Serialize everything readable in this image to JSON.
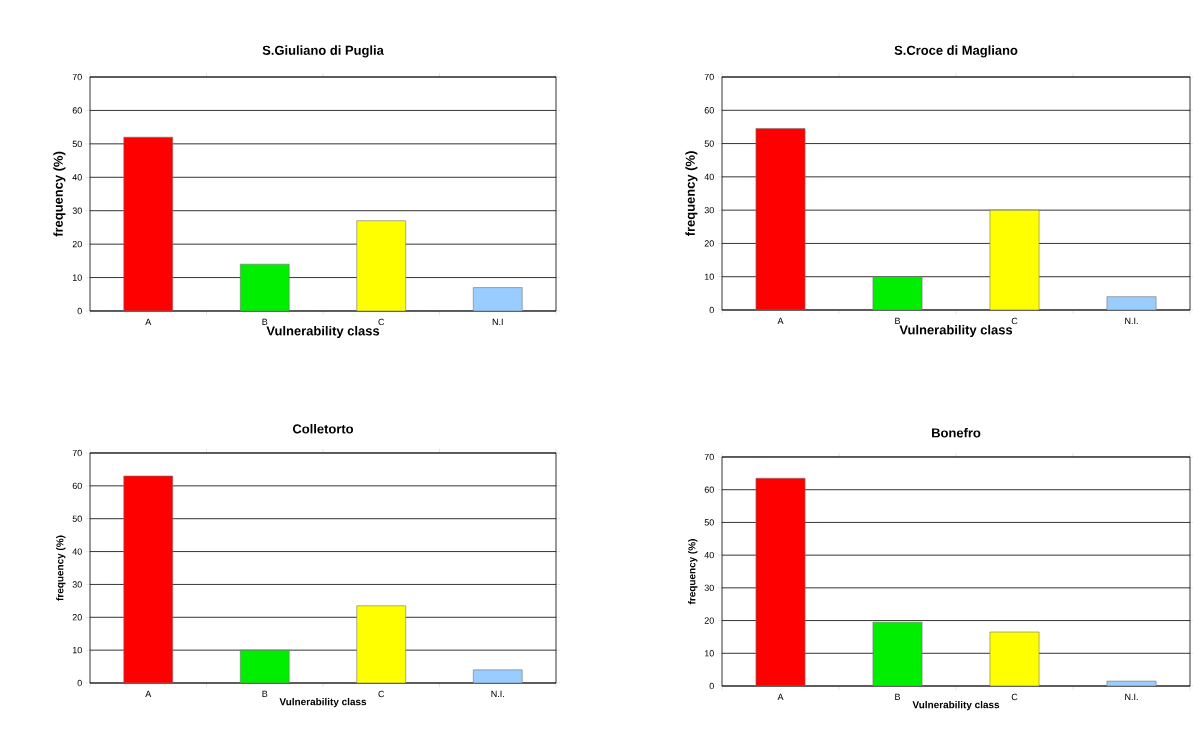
{
  "chart_data": [
    {
      "type": "bar",
      "title": "S.Giuliano di Puglia",
      "xlabel": "Vulnerability class",
      "ylabel": "frequency (%)",
      "categories": [
        "A",
        "B",
        "C",
        "N.I"
      ],
      "values": [
        52,
        14,
        27,
        7
      ],
      "colors": [
        "#ff0000",
        "#00ee00",
        "#ffff00",
        "#99ccff"
      ],
      "ylim": [
        0,
        70
      ],
      "yticks": [
        0,
        10,
        20,
        30,
        40,
        50,
        60,
        70
      ],
      "grid": "y"
    },
    {
      "type": "bar",
      "title": "S.Croce di Magliano",
      "xlabel": "Vulnerability class",
      "ylabel": "frequency (%)",
      "categories": [
        "A",
        "B",
        "C",
        "N.I."
      ],
      "values": [
        54.5,
        10,
        30,
        4
      ],
      "colors": [
        "#ff0000",
        "#00ee00",
        "#ffff00",
        "#99ccff"
      ],
      "ylim": [
        0,
        70
      ],
      "yticks": [
        0,
        10,
        20,
        30,
        40,
        50,
        60,
        70
      ],
      "grid": "y"
    },
    {
      "type": "bar",
      "title": "Colletorto",
      "xlabel": "Vulnerability class",
      "ylabel": "frequency (%)",
      "categories": [
        "A",
        "B",
        "C",
        "N.I."
      ],
      "values": [
        63,
        10,
        23.5,
        4
      ],
      "colors": [
        "#ff0000",
        "#00ee00",
        "#ffff00",
        "#99ccff"
      ],
      "ylim": [
        0,
        70
      ],
      "yticks": [
        0,
        10,
        20,
        30,
        40,
        50,
        60,
        70
      ],
      "grid": "y"
    },
    {
      "type": "bar",
      "title": "Bonefro",
      "xlabel": "Vulnerability class",
      "ylabel": "frequency (%)",
      "categories": [
        "A",
        "B",
        "C",
        "N.I."
      ],
      "values": [
        63.5,
        19.5,
        16.5,
        1.5
      ],
      "colors": [
        "#ff0000",
        "#00ee00",
        "#ffff00",
        "#99ccff"
      ],
      "ylim": [
        0,
        70
      ],
      "yticks": [
        0,
        10,
        20,
        30,
        40,
        50,
        60,
        70
      ],
      "grid": "y"
    }
  ]
}
